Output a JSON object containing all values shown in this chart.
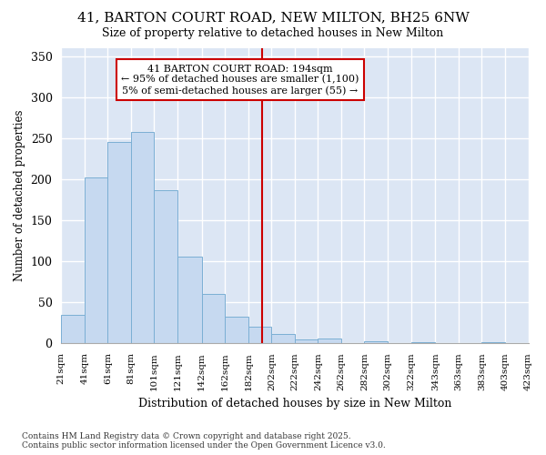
{
  "title1": "41, BARTON COURT ROAD, NEW MILTON, BH25 6NW",
  "title2": "Size of property relative to detached houses in New Milton",
  "xlabel": "Distribution of detached houses by size in New Milton",
  "ylabel": "Number of detached properties",
  "bar_color": "#c6d9f0",
  "bar_edge_color": "#7bafd4",
  "vline_color": "#cc0000",
  "vline_x": 194,
  "annotation_text": "41 BARTON COURT ROAD: 194sqm\n← 95% of detached houses are smaller (1,100)\n5% of semi-detached houses are larger (55) →",
  "annotation_box_color": "#ffffff",
  "annotation_box_edge": "#cc0000",
  "heights": [
    35,
    202,
    245,
    258,
    186,
    106,
    60,
    32,
    20,
    11,
    5,
    6,
    0,
    3,
    0,
    1,
    0,
    0,
    1,
    0
  ],
  "ylim": [
    0,
    360
  ],
  "yticks": [
    0,
    50,
    100,
    150,
    200,
    250,
    300,
    350
  ],
  "fig_bg_color": "#ffffff",
  "plot_bg_color": "#dce6f4",
  "grid_color": "#ffffff",
  "footer_text": "Contains HM Land Registry data © Crown copyright and database right 2025.\nContains public sector information licensed under the Open Government Licence v3.0.",
  "xtick_labels": [
    "21sqm",
    "41sqm",
    "61sqm",
    "81sqm",
    "101sqm",
    "121sqm",
    "142sqm",
    "162sqm",
    "182sqm",
    "202sqm",
    "222sqm",
    "242sqm",
    "262sqm",
    "282sqm",
    "302sqm",
    "322sqm",
    "343sqm",
    "363sqm",
    "383sqm",
    "403sqm",
    "423sqm"
  ]
}
